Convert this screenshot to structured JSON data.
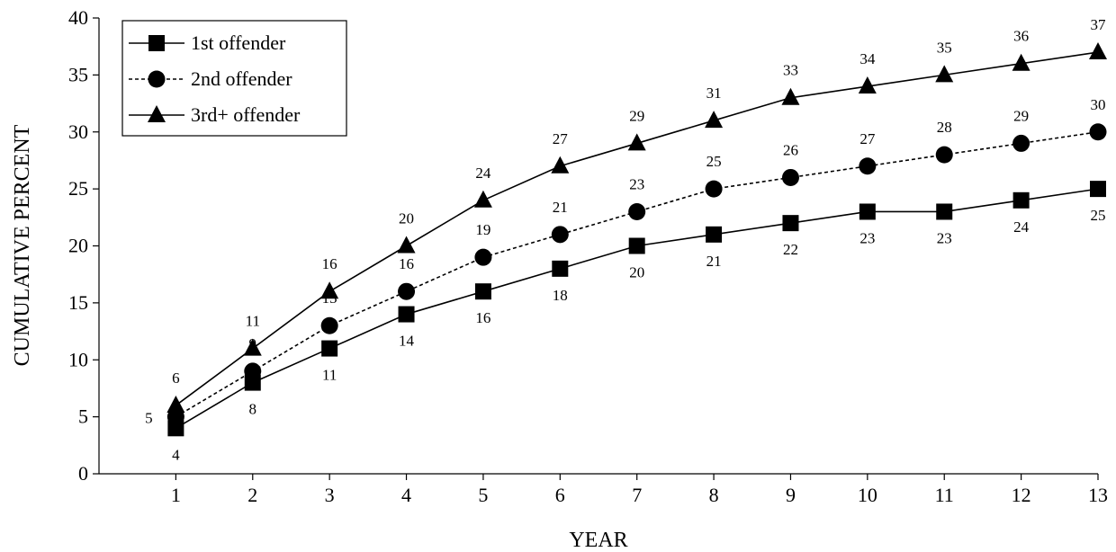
{
  "chart_data": {
    "type": "line",
    "title": "",
    "xlabel": "YEAR",
    "ylabel": "CUMULATIVE PERCENT",
    "x": [
      1,
      2,
      3,
      4,
      5,
      6,
      7,
      8,
      9,
      10,
      11,
      12,
      13
    ],
    "ylim": [
      0,
      40
    ],
    "xlim": [
      0,
      13
    ],
    "yticks": [
      0,
      5,
      10,
      15,
      20,
      25,
      30,
      35,
      40
    ],
    "grid": false,
    "legend_position": "top-left",
    "series": [
      {
        "name": "1st offender",
        "values": [
          4,
          8,
          11,
          14,
          16,
          18,
          20,
          21,
          22,
          23,
          23,
          24,
          25
        ],
        "marker": "square",
        "line_style": "solid",
        "label_position": "below",
        "color": "#000000"
      },
      {
        "name": "2nd offender",
        "values": [
          5,
          9,
          13,
          16,
          19,
          21,
          23,
          25,
          26,
          27,
          28,
          29,
          30
        ],
        "marker": "circle",
        "line_style": "dashed",
        "label_position": "left",
        "color": "#000000"
      },
      {
        "name": "3rd+ offender",
        "values": [
          6,
          11,
          16,
          20,
          24,
          27,
          29,
          31,
          33,
          34,
          35,
          36,
          37
        ],
        "marker": "triangle",
        "line_style": "solid",
        "label_position": "above",
        "color": "#000000"
      }
    ]
  }
}
